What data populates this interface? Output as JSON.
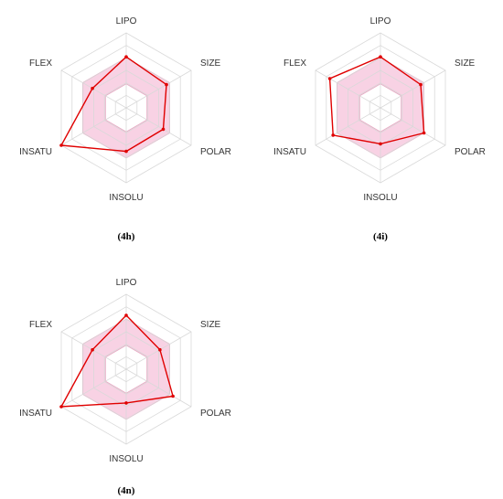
{
  "figure": {
    "axes": [
      "LIPO",
      "SIZE",
      "POLAR",
      "INSOLU",
      "INSATU",
      "FLEX"
    ]
  },
  "colors": {
    "grid": "#d9d9d9",
    "band_fill": "#f8d2e4",
    "band_stroke": "#e7a6c2",
    "series": "#e00000",
    "hole": "#ffffff"
  },
  "chart_data": [
    {
      "type": "radar",
      "caption": "(4h)",
      "axes": [
        "LIPO",
        "SIZE",
        "POLAR",
        "INSOLU",
        "INSATU",
        "FLEX"
      ],
      "range": [
        0,
        1
      ],
      "rings": 6,
      "optimal_band": {
        "inner": [
          0.32,
          0.32,
          0.32,
          0.32,
          0.32,
          0.32
        ],
        "outer": [
          0.67,
          0.67,
          0.67,
          0.67,
          0.67,
          0.67
        ]
      },
      "values": [
        0.68,
        0.62,
        0.57,
        0.58,
        1.0,
        0.52
      ]
    },
    {
      "type": "radar",
      "caption": "(4i)",
      "axes": [
        "LIPO",
        "SIZE",
        "POLAR",
        "INSOLU",
        "INSATU",
        "FLEX"
      ],
      "range": [
        0,
        1
      ],
      "rings": 6,
      "optimal_band": {
        "inner": [
          0.32,
          0.32,
          0.32,
          0.32,
          0.32,
          0.32
        ],
        "outer": [
          0.67,
          0.67,
          0.67,
          0.67,
          0.67,
          0.67
        ]
      },
      "values": [
        0.68,
        0.62,
        0.67,
        0.48,
        0.73,
        0.78
      ]
    },
    {
      "type": "radar",
      "caption": "(4n)",
      "axes": [
        "LIPO",
        "SIZE",
        "POLAR",
        "INSOLU",
        "INSATU",
        "FLEX"
      ],
      "range": [
        0,
        1
      ],
      "rings": 6,
      "optimal_band": {
        "inner": [
          0.32,
          0.32,
          0.32,
          0.32,
          0.32,
          0.32
        ],
        "outer": [
          0.67,
          0.67,
          0.67,
          0.67,
          0.67,
          0.67
        ]
      },
      "values": [
        0.72,
        0.52,
        0.72,
        0.45,
        1.0,
        0.52
      ]
    }
  ]
}
